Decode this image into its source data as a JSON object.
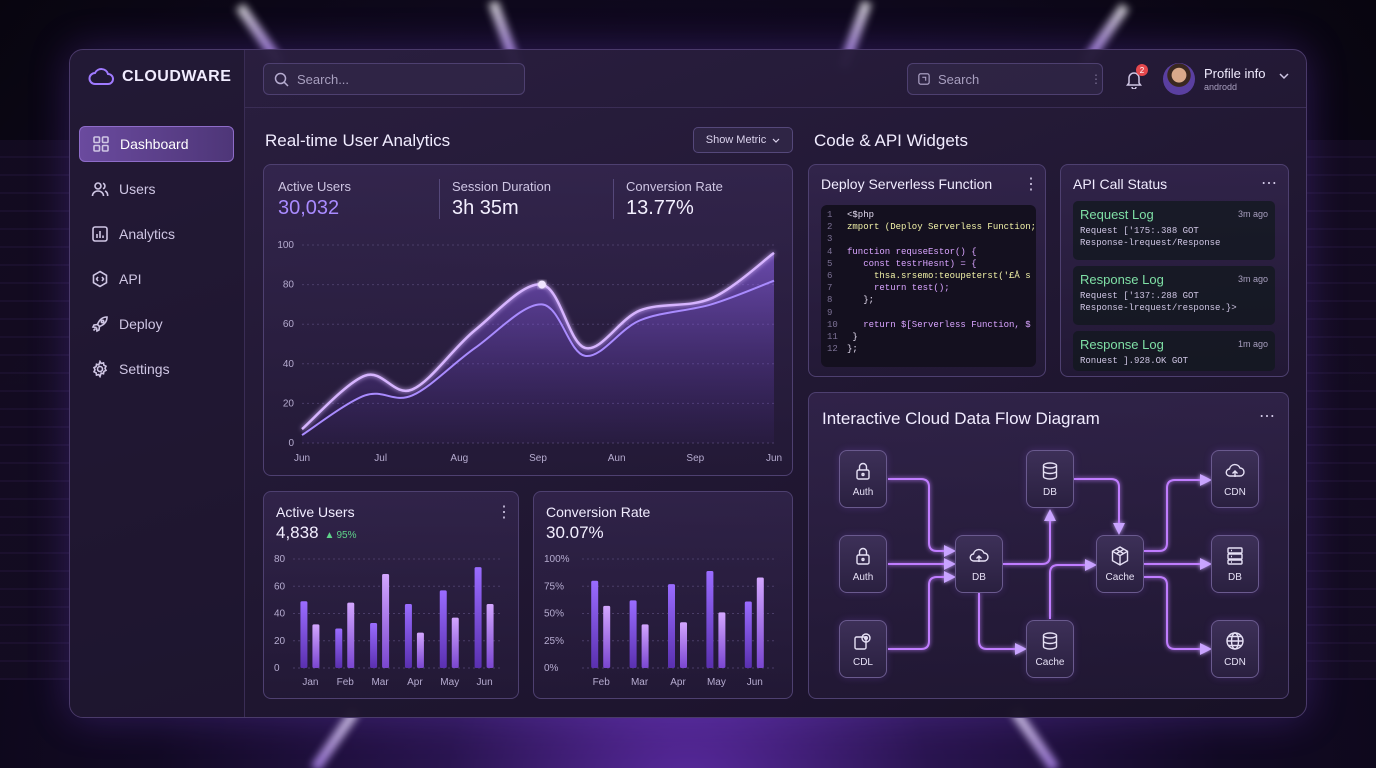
{
  "app": {
    "name": "CLOUDWARE"
  },
  "sidebar": {
    "items": [
      {
        "label": "Dashboard",
        "icon": "grid-icon",
        "active": true
      },
      {
        "label": "Users",
        "icon": "users-icon"
      },
      {
        "label": "Analytics",
        "icon": "analytics-icon"
      },
      {
        "label": "API",
        "icon": "code-icon"
      },
      {
        "label": "Deploy",
        "icon": "rocket-icon"
      },
      {
        "label": "Settings",
        "icon": "gear-icon"
      }
    ]
  },
  "topbar": {
    "search_placeholder": "Search...",
    "secondary_search_placeholder": "Search",
    "notification_count": "2",
    "profile_name": "Profile info",
    "profile_sub": "androdd"
  },
  "analytics": {
    "title": "Real-time User Analytics",
    "metric_button": "Show Metric",
    "stats": [
      {
        "label": "Active Users",
        "value": "30,032"
      },
      {
        "label": "Session Duration",
        "value": "3h 35m"
      },
      {
        "label": "Conversion Rate",
        "value": "13.77%"
      }
    ]
  },
  "chart_data": [
    {
      "type": "area",
      "categories": [
        "Jun",
        "Jul",
        "Aug",
        "Sep",
        "Aun",
        "Sep",
        "Jun"
      ],
      "ylim": [
        0,
        100
      ],
      "yticks": [
        0,
        20,
        40,
        60,
        80,
        100
      ],
      "series": [
        {
          "values": [
            7,
            34,
            27,
            57,
            80,
            48,
            67,
            73,
            96
          ],
          "x": [
            0,
            0.8,
            1.4,
            2.2,
            3.05,
            3.6,
            4.3,
            5.2,
            6
          ]
        },
        {
          "values": [
            4,
            24,
            24,
            48,
            70,
            44,
            62,
            70,
            82
          ],
          "x": [
            0,
            0.8,
            1.4,
            2.2,
            3.05,
            3.6,
            4.3,
            5.2,
            6
          ]
        }
      ]
    },
    {
      "type": "bar",
      "title": "Active Users",
      "value": "4,838",
      "change": "95%",
      "categories": [
        "Jan",
        "Feb",
        "Mar",
        "Apr",
        "May",
        "Jun"
      ],
      "ylim": [
        0,
        80
      ],
      "yticks": [
        0,
        20,
        40,
        60,
        80
      ],
      "series": [
        {
          "values": [
            49,
            29,
            33,
            47,
            57,
            74
          ]
        },
        {
          "values": [
            32,
            48,
            69,
            26,
            37,
            47
          ]
        }
      ]
    },
    {
      "type": "bar",
      "title": "Conversion Rate",
      "value": "30.07%",
      "categories": [
        "Feb",
        "Mar",
        "Apr",
        "May",
        "Jun"
      ],
      "ylim": [
        0,
        100
      ],
      "yticks": [
        "0%",
        "25%",
        "50%",
        "75%",
        "100%"
      ],
      "series": [
        {
          "values": [
            80,
            62,
            77,
            89,
            61
          ]
        },
        {
          "values": [
            57,
            40,
            42,
            51,
            83
          ]
        }
      ]
    }
  ],
  "code_widgets": {
    "title": "Code & API Widgets",
    "deploy": {
      "title": "Deploy Serverless Function",
      "lines": [
        {
          "n": "1",
          "t": "<$php"
        },
        {
          "n": "2",
          "t": "zmport (Deploy Serverless Function;"
        },
        {
          "n": "3",
          "t": ""
        },
        {
          "n": "4",
          "t": "function requseEstor() {"
        },
        {
          "n": "5",
          "t": "   const testrHesnt) = {"
        },
        {
          "n": "6",
          "t": "     thsa.srsemo:teoupeterst('£Å s"
        },
        {
          "n": "7",
          "t": "     return test();"
        },
        {
          "n": "8",
          "t": "   };"
        },
        {
          "n": "9",
          "t": ""
        },
        {
          "n": "10",
          "t": "   return $[Serverless Function, $"
        },
        {
          "n": "11",
          "t": " }"
        },
        {
          "n": "12",
          "t": "};"
        }
      ]
    },
    "api_status": {
      "title": "API Call Status",
      "logs": [
        {
          "title": "Request Log",
          "time": "3m ago",
          "l1": "Request ['175:.388 GOT",
          "l2": "Response-lrequest/Response"
        },
        {
          "title": "Response Log",
          "time": "3m ago",
          "l1": "Request ['137:.288 GOT",
          "l2": "Response-lrequest/response.}>"
        },
        {
          "title": "Response Log",
          "time": "1m ago",
          "l1": "Ronuest ].928.OK GOT",
          "l2": ""
        }
      ]
    }
  },
  "diagram": {
    "title": "Interactive Cloud Data Flow Diagram",
    "nodes": [
      {
        "id": "auth1",
        "label": "Auth",
        "icon": "lock-icon"
      },
      {
        "id": "auth2",
        "label": "Auth",
        "icon": "lock-icon"
      },
      {
        "id": "cdl",
        "label": "CDL",
        "icon": "gear-copy-icon"
      },
      {
        "id": "db-cloud",
        "label": "DB",
        "icon": "cloud-upload-icon"
      },
      {
        "id": "db-top",
        "label": "DB",
        "icon": "database-icon"
      },
      {
        "id": "cache-bottom",
        "label": "Cache",
        "icon": "database-icon"
      },
      {
        "id": "cache-center",
        "label": "Cache",
        "icon": "cube-icon"
      },
      {
        "id": "cdn1",
        "label": "CDN",
        "icon": "cloud-upload-icon"
      },
      {
        "id": "db-right",
        "label": "DB",
        "icon": "server-icon"
      },
      {
        "id": "cdn2",
        "label": "CDN",
        "icon": "globe-icon"
      }
    ]
  },
  "colors": {
    "accent": "#9b6cff",
    "accent_light": "#c9a4ff",
    "positive": "#5fd48a",
    "badge": "#e5484d"
  }
}
